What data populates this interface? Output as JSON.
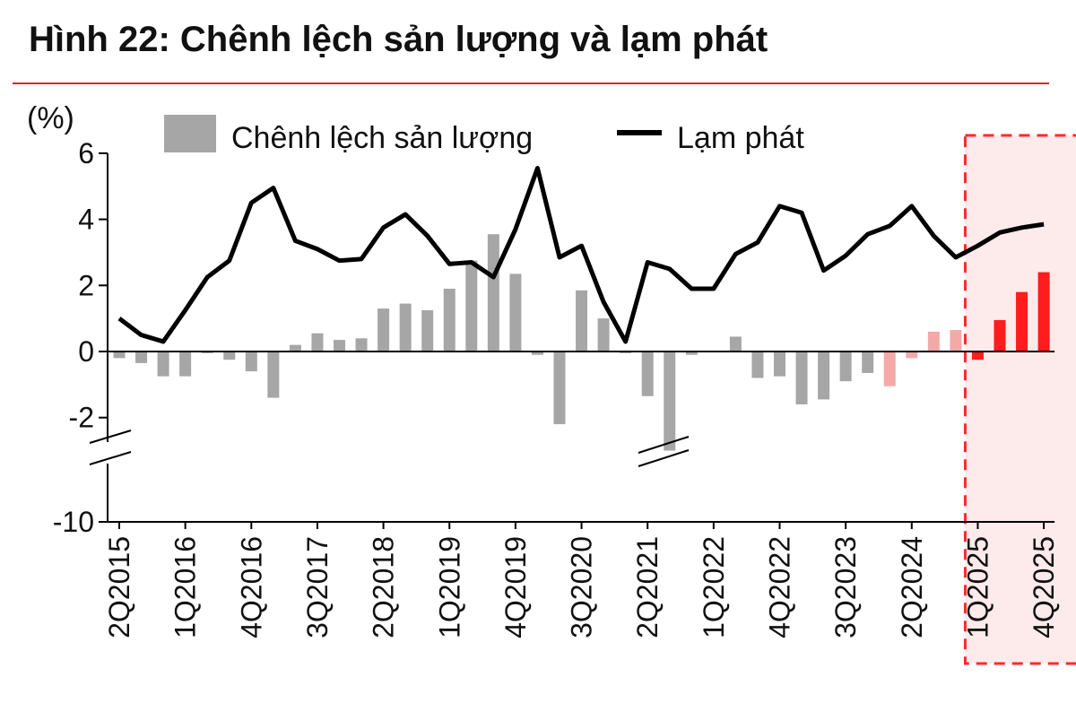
{
  "title": "Hình 22: Chênh lệch sản lượng và lạm phát",
  "colors": {
    "rule": "#d42a2a",
    "bar": "#a6a6a6",
    "bar_highlight_light": "#f4a9a9",
    "bar_highlight": "#ff1c1c",
    "line": "#000000",
    "box_border": "#ff2a2a",
    "box_fill": "#fdeaea"
  },
  "chart_data": {
    "type": "bar+line",
    "unit_label": "(%)",
    "y_ticks": [
      6,
      4,
      2,
      0,
      -2,
      -10
    ],
    "y_axis_break": true,
    "legend": {
      "bar_label": "Chênh lệch sản lượng",
      "line_label": "Lạm phát",
      "placement": "top"
    },
    "x_tick_labels": [
      "2Q2015",
      "1Q2016",
      "4Q2016",
      "3Q2017",
      "2Q2018",
      "1Q2019",
      "4Q2019",
      "3Q2020",
      "2Q2021",
      "1Q2022",
      "4Q2022",
      "3Q2023",
      "2Q2024",
      "1Q2025",
      "4Q2025"
    ],
    "categories": [
      "2Q2015",
      "3Q2015",
      "4Q2015",
      "1Q2016",
      "2Q2016",
      "3Q2016",
      "4Q2016",
      "1Q2017",
      "2Q2017",
      "3Q2017",
      "4Q2017",
      "1Q2018",
      "2Q2018",
      "3Q2018",
      "4Q2018",
      "1Q2019",
      "2Q2019",
      "3Q2019",
      "4Q2019",
      "1Q2020",
      "2Q2020",
      "3Q2020",
      "4Q2020",
      "1Q2021",
      "2Q2021",
      "3Q2021",
      "4Q2021",
      "1Q2022",
      "2Q2022",
      "3Q2022",
      "4Q2022",
      "1Q2023",
      "2Q2023",
      "3Q2023",
      "4Q2023",
      "1Q2024",
      "2Q2024",
      "3Q2024",
      "4Q2024",
      "1Q2025",
      "2Q2025",
      "3Q2025",
      "4Q2025"
    ],
    "series": [
      {
        "name": "Chênh lệch sản lượng",
        "kind": "bar",
        "values": [
          -0.2,
          -0.35,
          -0.75,
          -0.75,
          -0.05,
          -0.25,
          -0.6,
          -1.4,
          0.2,
          0.55,
          0.35,
          0.4,
          1.3,
          1.45,
          1.25,
          1.9,
          2.75,
          3.55,
          2.35,
          -0.1,
          -2.2,
          1.85,
          1.0,
          -0.05,
          -1.35,
          -3.5,
          -0.1,
          0.0,
          0.45,
          -0.8,
          -0.75,
          -1.6,
          -1.45,
          -0.9,
          -0.65,
          -1.05,
          -0.2,
          0.6,
          0.65,
          -0.25,
          0.95,
          1.8,
          2.4
        ],
        "highlight": [
          false,
          false,
          false,
          false,
          false,
          false,
          false,
          false,
          false,
          false,
          false,
          false,
          false,
          false,
          false,
          false,
          false,
          false,
          false,
          false,
          false,
          false,
          false,
          false,
          false,
          false,
          false,
          false,
          false,
          false,
          false,
          false,
          false,
          false,
          false,
          "light",
          "light",
          "light",
          "light",
          "strong",
          "strong",
          "strong",
          "strong"
        ]
      },
      {
        "name": "Lạm phát",
        "kind": "line",
        "values": [
          1.0,
          0.5,
          0.3,
          1.25,
          2.25,
          2.75,
          4.5,
          4.95,
          3.35,
          3.1,
          2.75,
          2.8,
          3.75,
          4.15,
          3.5,
          2.65,
          2.7,
          2.25,
          3.7,
          5.55,
          2.85,
          3.2,
          1.5,
          0.3,
          2.7,
          2.5,
          1.9,
          1.9,
          2.95,
          3.3,
          4.4,
          4.2,
          2.45,
          2.9,
          3.55,
          3.8,
          4.4,
          3.5,
          2.85,
          3.2,
          3.6,
          3.75,
          3.85
        ]
      }
    ],
    "forecast_box": {
      "from": "1Q2025",
      "to": "4Q2025",
      "style": "dashed"
    },
    "grid": false
  }
}
